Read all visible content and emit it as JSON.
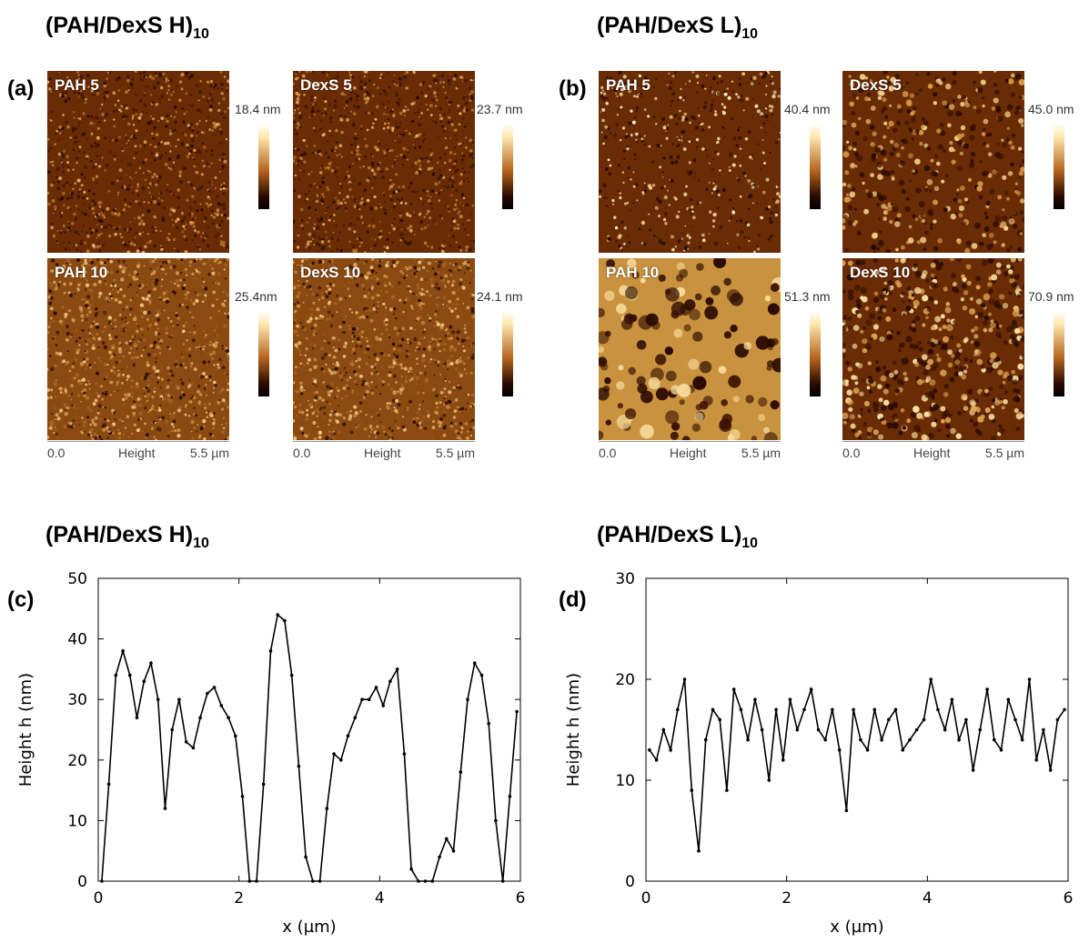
{
  "figure": {
    "title_a": {
      "main": "(PAH/DexS H)",
      "sub": "10"
    },
    "title_b": {
      "main": "(PAH/DexS L)",
      "sub": "10"
    },
    "title_c": {
      "main": "(PAH/DexS H)",
      "sub": "10"
    },
    "title_d": {
      "main": "(PAH/DexS L)",
      "sub": "10"
    },
    "letters": {
      "a": "(a)",
      "b": "(b)",
      "c": "(c)",
      "d": "(d)"
    }
  },
  "afm_images": [
    {
      "label": "PAH 5",
      "scale": "18.4 nm",
      "style": "fine"
    },
    {
      "label": "DexS 5",
      "scale": "23.7 nm",
      "style": "fine"
    },
    {
      "label": "PAH 10",
      "scale": "25.4nm",
      "style": "fine-light"
    },
    {
      "label": "DexS 10",
      "scale": "24.1 nm",
      "style": "fine-light"
    },
    {
      "label": "PAH 5",
      "scale": "40.4 nm",
      "style": "dots"
    },
    {
      "label": "DexS 5",
      "scale": "45.0 nm",
      "style": "worms"
    },
    {
      "label": "PAH 10",
      "scale": "51.3 nm",
      "style": "holes"
    },
    {
      "label": "DexS 10",
      "scale": "70.9 nm",
      "style": "worms-dense"
    }
  ],
  "scale_bar": {
    "start": "0.0",
    "middle": "Height",
    "end": "5.5 µm"
  },
  "colors": {
    "afm_dark": "#2a0a00",
    "afm_mid": "#b5651d",
    "afm_light": "#ffe9b0",
    "line": "#000000"
  },
  "chart_data": [
    {
      "type": "line",
      "title": "(PAH/DexS H)10",
      "xlabel": "x (µm)",
      "ylabel": "Height h (nm)",
      "xlim": [
        0,
        6
      ],
      "ylim": [
        0,
        50
      ],
      "xticks": [
        0,
        2,
        4,
        6
      ],
      "yticks": [
        0,
        10,
        20,
        30,
        40,
        50
      ],
      "x": [
        0.05,
        0.15,
        0.25,
        0.35,
        0.45,
        0.55,
        0.65,
        0.75,
        0.85,
        0.95,
        1.05,
        1.15,
        1.25,
        1.35,
        1.45,
        1.55,
        1.65,
        1.75,
        1.85,
        1.95,
        2.05,
        2.15,
        2.25,
        2.35,
        2.45,
        2.55,
        2.65,
        2.75,
        2.85,
        2.95,
        3.05,
        3.15,
        3.25,
        3.35,
        3.45,
        3.55,
        3.65,
        3.75,
        3.85,
        3.95,
        4.05,
        4.15,
        4.25,
        4.35,
        4.45,
        4.55,
        4.65,
        4.75,
        4.85,
        4.95,
        5.05,
        5.15,
        5.25,
        5.35,
        5.45,
        5.55,
        5.65,
        5.75,
        5.85,
        5.95
      ],
      "values": [
        0,
        16,
        34,
        38,
        34,
        27,
        33,
        36,
        30,
        12,
        25,
        30,
        23,
        22,
        27,
        31,
        32,
        29,
        27,
        24,
        14,
        0,
        0,
        16,
        38,
        44,
        43,
        34,
        19,
        4,
        0,
        0,
        12,
        21,
        20,
        24,
        27,
        30,
        30,
        32,
        29,
        33,
        35,
        21,
        2,
        0,
        0,
        0,
        4,
        7,
        5,
        18,
        30,
        36,
        34,
        26,
        10,
        0,
        14,
        28
      ]
    },
    {
      "type": "line",
      "title": "(PAH/DexS L)10",
      "xlabel": "x (µm)",
      "ylabel": "Height h (nm)",
      "xlim": [
        0,
        6
      ],
      "ylim": [
        0,
        30
      ],
      "xticks": [
        0,
        2,
        4,
        6
      ],
      "yticks": [
        0,
        10,
        20,
        30
      ],
      "x": [
        0.05,
        0.15,
        0.25,
        0.35,
        0.45,
        0.55,
        0.65,
        0.75,
        0.85,
        0.95,
        1.05,
        1.15,
        1.25,
        1.35,
        1.45,
        1.55,
        1.65,
        1.75,
        1.85,
        1.95,
        2.05,
        2.15,
        2.25,
        2.35,
        2.45,
        2.55,
        2.65,
        2.75,
        2.85,
        2.95,
        3.05,
        3.15,
        3.25,
        3.35,
        3.45,
        3.55,
        3.65,
        3.75,
        3.85,
        3.95,
        4.05,
        4.15,
        4.25,
        4.35,
        4.45,
        4.55,
        4.65,
        4.75,
        4.85,
        4.95,
        5.05,
        5.15,
        5.25,
        5.35,
        5.45,
        5.55,
        5.65,
        5.75,
        5.85,
        5.95
      ],
      "values": [
        13,
        12,
        15,
        13,
        17,
        20,
        9,
        3,
        14,
        17,
        16,
        9,
        19,
        17,
        14,
        18,
        15,
        10,
        17,
        12,
        18,
        15,
        17,
        19,
        15,
        14,
        17,
        13,
        7,
        17,
        14,
        13,
        17,
        14,
        16,
        17,
        13,
        14,
        15,
        16,
        20,
        17,
        15,
        18,
        14,
        16,
        11,
        15,
        19,
        14,
        13,
        18,
        16,
        14,
        20,
        12,
        15,
        11,
        16,
        17
      ]
    }
  ]
}
